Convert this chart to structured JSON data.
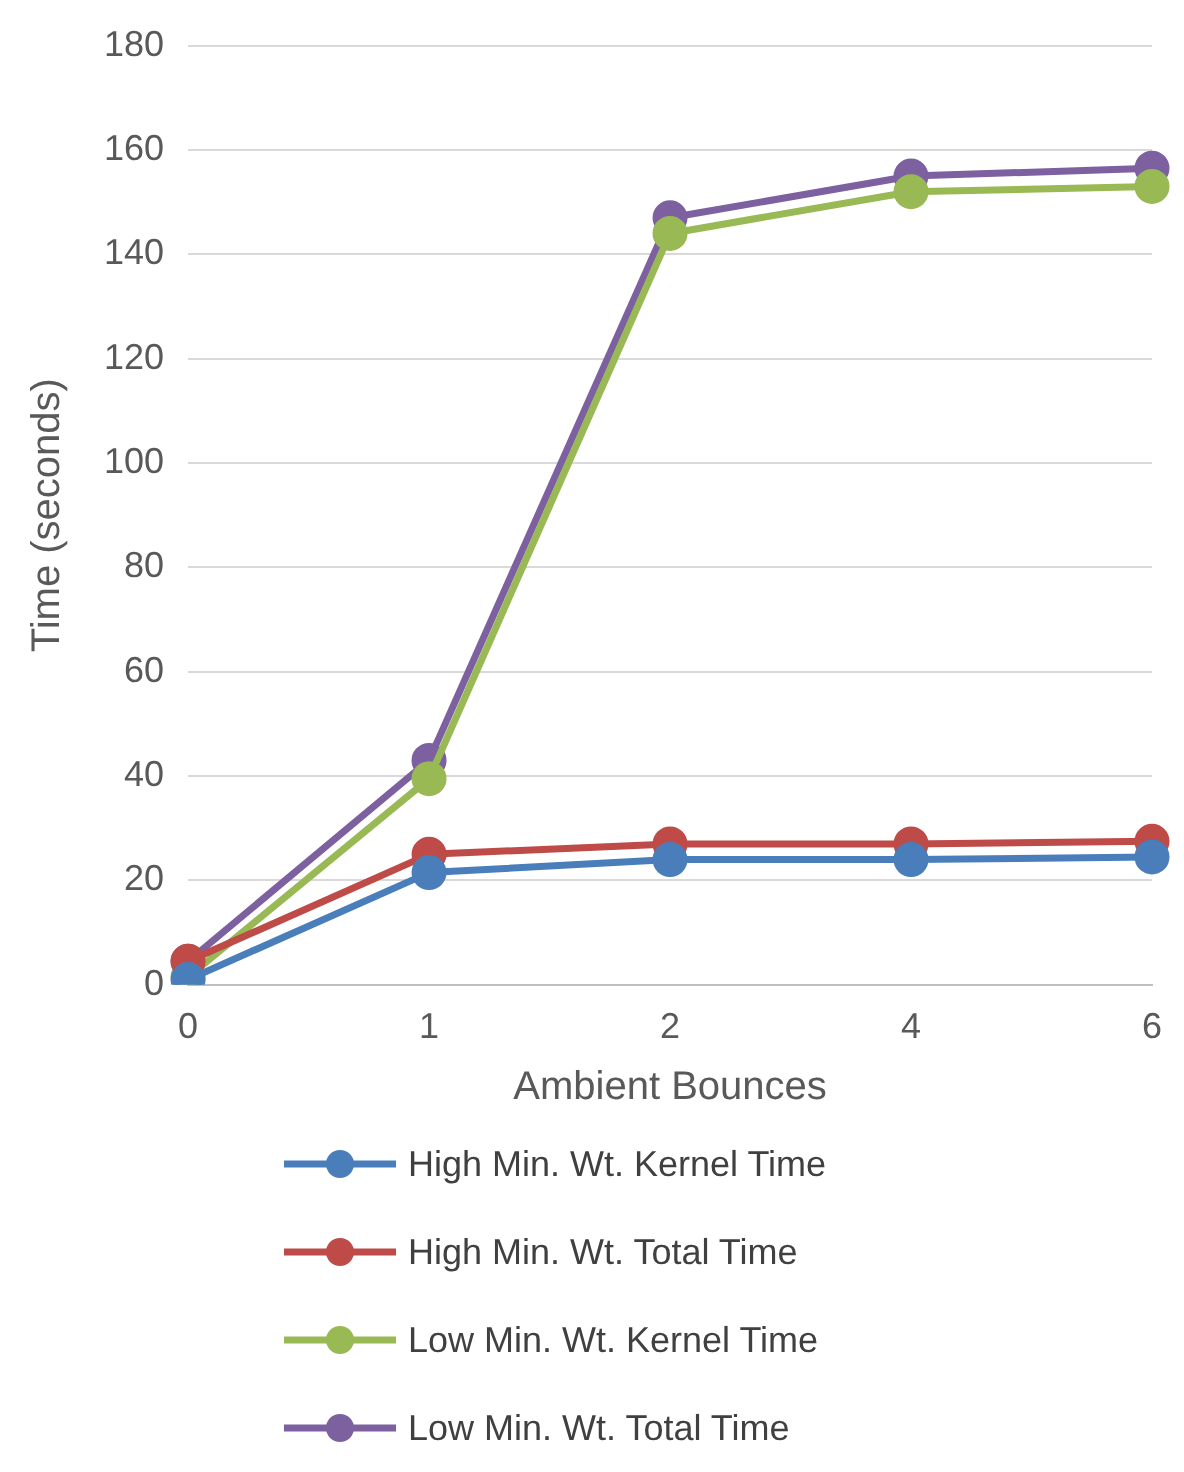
{
  "chart_data": {
    "type": "line",
    "xlabel": "Ambient Bounces",
    "ylabel": "Time (seconds)",
    "categories": [
      "0",
      "1",
      "2",
      "4",
      "6"
    ],
    "series": [
      {
        "name": "High Min. Wt. Kernel Time",
        "color": "#4a7ebb",
        "values": [
          1,
          21.5,
          24,
          24,
          24.5
        ]
      },
      {
        "name": "High Min. Wt. Total Time",
        "color": "#be4b48",
        "values": [
          4.5,
          25,
          27,
          27,
          27.5
        ]
      },
      {
        "name": "Low Min. Wt. Kernel Time",
        "color": "#98b954",
        "values": [
          1.5,
          39.5,
          144,
          152,
          153
        ]
      },
      {
        "name": "Low Min. Wt. Total Time",
        "color": "#7d60a0",
        "values": [
          4.5,
          43,
          147,
          155,
          156.5
        ]
      }
    ],
    "ylim": [
      0,
      180
    ],
    "yticks": [
      0,
      20,
      40,
      60,
      80,
      100,
      120,
      140,
      160,
      180
    ],
    "grid": "y",
    "legend": "bottom",
    "marker": "circle",
    "line_style": "solid"
  }
}
